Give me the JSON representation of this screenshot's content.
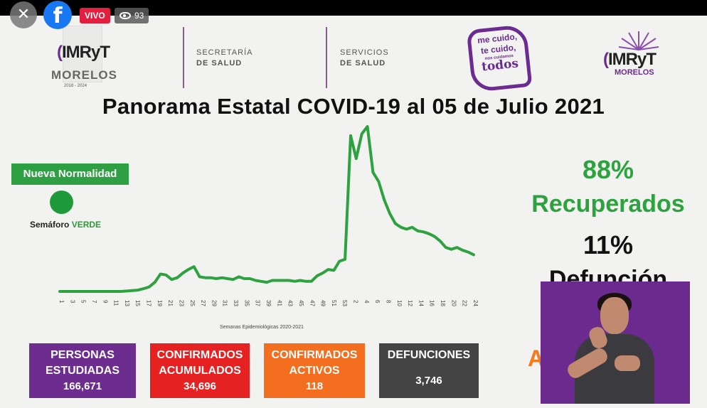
{
  "live_bar": {
    "close_glyph": "✕",
    "facebook_glyph": "f",
    "live_label": "VIVO",
    "viewers": "93"
  },
  "header": {
    "logo_left": {
      "text": "IMRyT",
      "subtitle": "MORELOS",
      "years": "2018 - 2024"
    },
    "secretaria": {
      "line1": "SECRETARÍA",
      "line2": "DE SALUD"
    },
    "servicios": {
      "line1": "SERVICIOS",
      "line2": "DE SALUD"
    },
    "campaign": {
      "line1": "me cuido,",
      "line2": "te cuido,",
      "line3": "nos cuidamos",
      "line4": "todos"
    },
    "logo_right": {
      "text": "IMRyT",
      "subtitle": "MORELOS"
    }
  },
  "title": "Panorama Estatal COVID-19 al 05 de Julio 2021",
  "status": {
    "phase": "Nueva Normalidad",
    "semaforo_label": "Semáforo",
    "semaforo_value": "VERDE",
    "semaforo_color": "#1f9a3a"
  },
  "chart_data": {
    "type": "line",
    "xlabel": "Semanas Epidemiológicas 2020-2021",
    "ylabel": "",
    "series_color": "#2da23f",
    "tick_labels": [
      "1",
      "3",
      "5",
      "7",
      "9",
      "11",
      "13",
      "15",
      "17",
      "19",
      "21",
      "23",
      "25",
      "27",
      "29",
      "31",
      "33",
      "35",
      "37",
      "39",
      "41",
      "43",
      "45",
      "47",
      "49",
      "51",
      "53",
      "2",
      "4",
      "6",
      "8",
      "10",
      "12",
      "14",
      "16",
      "18",
      "20",
      "22",
      "24"
    ],
    "values": [
      0,
      0,
      0,
      0,
      0,
      0,
      0,
      0,
      0,
      0,
      0,
      0,
      0.5,
      1,
      1.5,
      3,
      5,
      10,
      19,
      18,
      13,
      15,
      20,
      24,
      27,
      16,
      15,
      15,
      14,
      15,
      14,
      13,
      16,
      14,
      14,
      12,
      11,
      10,
      12,
      12,
      12,
      12,
      11,
      12,
      11,
      11,
      17,
      20,
      24,
      23,
      33,
      35,
      170,
      145,
      172,
      180,
      130,
      120,
      100,
      85,
      74,
      70,
      68,
      70,
      66,
      65,
      63,
      60,
      55,
      48,
      46,
      48,
      45,
      43,
      40
    ]
  },
  "stats": {
    "recuperados_pct": "88%",
    "recuperados_label": "Recuperados",
    "defuncion_pct": "11%",
    "defuncion_label": "Defunción",
    "partial_letter": "A"
  },
  "boxes": [
    {
      "label1": "PERSONAS",
      "label2": "ESTUDIADAS",
      "value": "166,671",
      "color": "#6d2d8f"
    },
    {
      "label1": "CONFIRMADOS",
      "label2": "ACUMULADOS",
      "value": "34,696",
      "color": "#e52121"
    },
    {
      "label1": "CONFIRMADOS",
      "label2": "ACTIVOS",
      "value": "118",
      "color": "#f36f1f"
    },
    {
      "label1": "DEFUNCIONES",
      "label2": "",
      "value": "3,746",
      "color": "#444444"
    }
  ]
}
